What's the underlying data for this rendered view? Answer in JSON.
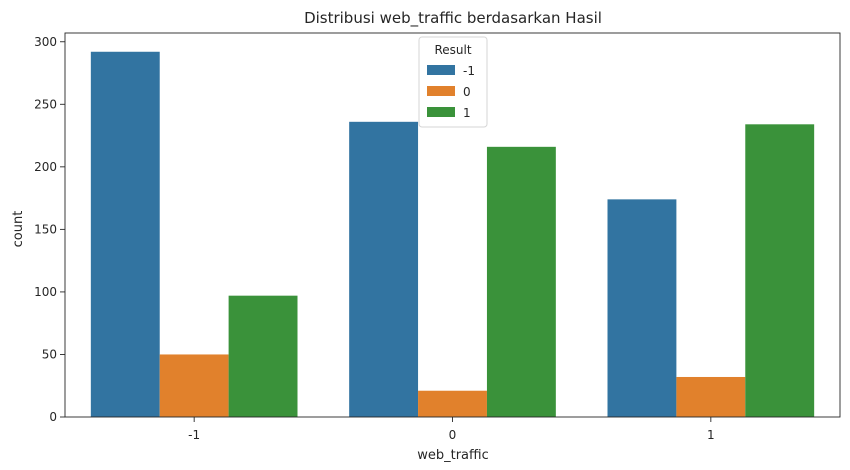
{
  "chart_data": {
    "type": "bar",
    "title": "Distribusi web_traffic berdasarkan Hasil",
    "xlabel": "web_traffic",
    "ylabel": "count",
    "categories": [
      "-1",
      "0",
      "1"
    ],
    "series": [
      {
        "name": "-1",
        "color": "#3274a1",
        "values": [
          292,
          236,
          174
        ]
      },
      {
        "name": "0",
        "color": "#e1812c",
        "values": [
          50,
          21,
          32
        ]
      },
      {
        "name": "1",
        "color": "#3a923a",
        "values": [
          97,
          216,
          234
        ]
      }
    ],
    "ylim": [
      0,
      307
    ],
    "yticks": [
      0,
      50,
      100,
      150,
      200,
      250,
      300
    ],
    "legend": {
      "title": "Result",
      "placement": "upper-center"
    },
    "grid": false
  }
}
